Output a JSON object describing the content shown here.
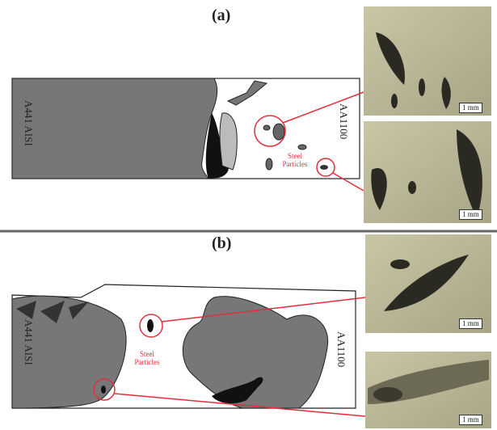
{
  "panels": [
    {
      "label": "(a)",
      "left_material": "A441 AISI",
      "right_material": "AA1100",
      "annotation": "Steel Particles",
      "micrographs": [
        {
          "scale": "1 mm"
        },
        {
          "scale": "1 mm"
        }
      ]
    },
    {
      "label": "(b)",
      "left_material": "A441 AISI",
      "right_material": "AA1100",
      "annotation": "Steel Particles",
      "micrographs": [
        {
          "scale": "1 mm"
        },
        {
          "scale": "1 mm"
        }
      ]
    }
  ]
}
